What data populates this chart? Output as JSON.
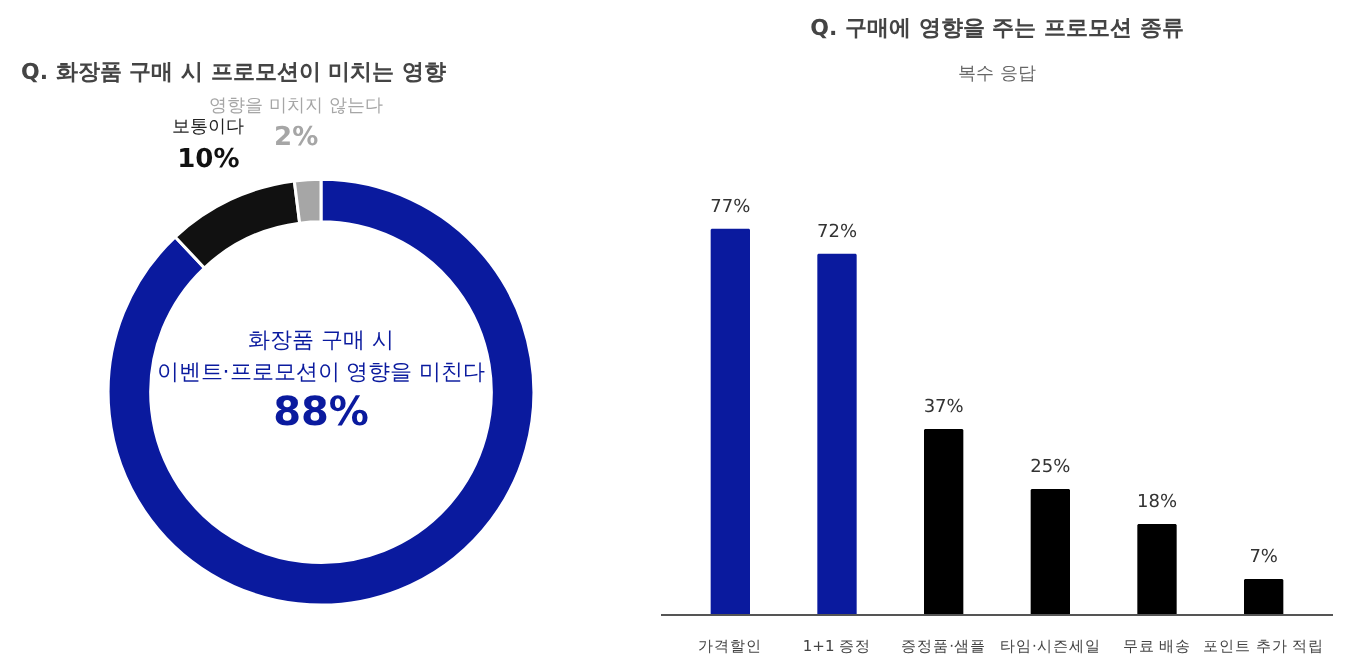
{
  "chart_data": [
    {
      "type": "donut",
      "title": "Q. 화장품 구매 시 프로모션이 미치는 영향",
      "categories": [
        "화장품 구매 시\n이벤트·프로모션이 영향을 미친다",
        "보통이다",
        "영향을 미치지 않는다"
      ],
      "values": [
        88,
        10,
        2
      ],
      "colors": [
        "#0a1a9e",
        "#111111",
        "#a6a6a6"
      ],
      "value_labels": [
        "88%",
        "10%",
        "2%"
      ]
    },
    {
      "type": "bar",
      "title": "Q. 구매에 영향을 주는 프로모션 종류",
      "subtitle": "복수 응답",
      "categories": [
        "가격할인",
        "1+1 증정",
        "증정품·샘플",
        "타임·시즌세일",
        "무료 배송",
        "포인트 추가 적립"
      ],
      "values": [
        77,
        72,
        37,
        25,
        18,
        7
      ],
      "colors": [
        "#0a1a9e",
        "#0a1a9e",
        "#000000",
        "#000000",
        "#000000",
        "#000000"
      ],
      "value_labels": [
        "77%",
        "72%",
        "37%",
        "25%",
        "18%",
        "7%"
      ]
    }
  ]
}
